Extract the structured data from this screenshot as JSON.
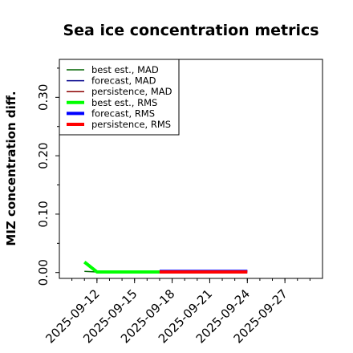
{
  "chart_data": {
    "type": "line",
    "title": "Sea ice concentration metrics",
    "xlabel": "",
    "ylabel": "MIZ concentration diff.",
    "x_ticks": [
      "2025-09-12",
      "2025-09-15",
      "2025-09-18",
      "2025-09-21",
      "2025-09-24",
      "2025-09-27"
    ],
    "highlighted_tick": "2025-09-18",
    "highlight_color": "#228b22",
    "y_ticks": [
      "0.00",
      "0.10",
      "0.20",
      "0.30"
    ],
    "y_tick_values": [
      0.0,
      0.1,
      0.2,
      0.3
    ],
    "xlim": [
      "2025-09-09",
      "2025-09-30"
    ],
    "ylim": [
      -0.01,
      0.365
    ],
    "grid": false,
    "legend_position": "top-left",
    "series": [
      {
        "name": "best est., MAD",
        "color": "#006400",
        "width": "thin",
        "x": [
          "2025-09-11",
          "2025-09-12",
          "2025-09-13",
          "2025-09-14",
          "2025-09-15",
          "2025-09-16",
          "2025-09-17"
        ],
        "y": [
          0.002,
          0.001,
          0.001,
          0.001,
          0.001,
          0.001,
          0.001
        ]
      },
      {
        "name": "forecast,  MAD",
        "color": "#00008b",
        "width": "thin",
        "x": [
          "2025-09-17",
          "2025-09-18",
          "2025-09-19",
          "2025-09-20",
          "2025-09-21",
          "2025-09-22",
          "2025-09-23",
          "2025-09-24"
        ],
        "y": [
          0.002,
          0.003,
          0.003,
          0.003,
          0.003,
          0.003,
          0.003,
          0.003
        ]
      },
      {
        "name": "persistence, MAD",
        "color": "#8b0000",
        "width": "thin",
        "x": [
          "2025-09-17",
          "2025-09-18",
          "2025-09-19",
          "2025-09-20",
          "2025-09-21",
          "2025-09-22",
          "2025-09-23",
          "2025-09-24"
        ],
        "y": [
          0.001,
          0.002,
          0.002,
          0.002,
          0.002,
          0.002,
          0.002,
          0.002
        ]
      },
      {
        "name": "best est., RMS",
        "color": "#00ff00",
        "width": "thick",
        "x": [
          "2025-09-11",
          "2025-09-12",
          "2025-09-13",
          "2025-09-14",
          "2025-09-15",
          "2025-09-16",
          "2025-09-17"
        ],
        "y": [
          0.018,
          0.001,
          0.001,
          0.001,
          0.001,
          0.001,
          0.001
        ]
      },
      {
        "name": "forecast,  RMS",
        "color": "#0000ff",
        "width": "thick",
        "x": [
          "2025-09-17",
          "2025-09-18",
          "2025-09-19",
          "2025-09-20",
          "2025-09-21",
          "2025-09-22",
          "2025-09-23",
          "2025-09-24"
        ],
        "y": [
          0.002,
          0.002,
          0.002,
          0.002,
          0.002,
          0.002,
          0.002,
          0.002
        ]
      },
      {
        "name": "persistence, RMS",
        "color": "#ff0000",
        "width": "thick",
        "x": [
          "2025-09-17",
          "2025-09-18",
          "2025-09-19",
          "2025-09-20",
          "2025-09-21",
          "2025-09-22",
          "2025-09-23",
          "2025-09-24"
        ],
        "y": [
          0.001,
          0.001,
          0.001,
          0.001,
          0.001,
          0.001,
          0.001,
          0.001
        ]
      }
    ]
  }
}
